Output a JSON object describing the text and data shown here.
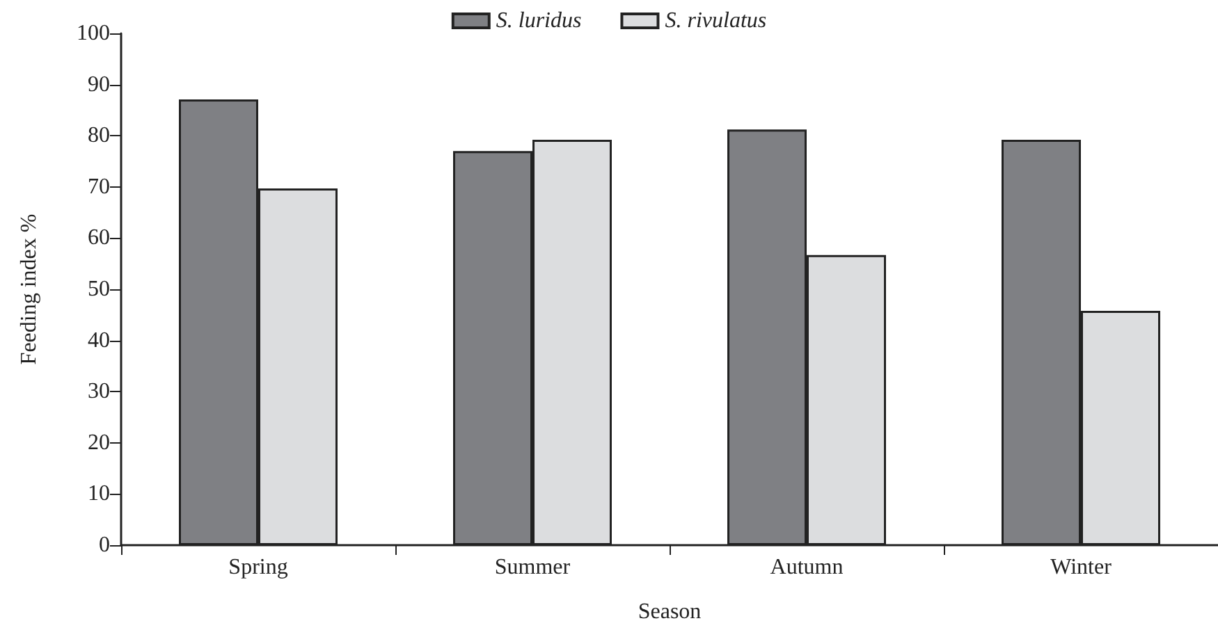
{
  "chart_data": {
    "type": "bar",
    "xlabel": "Season",
    "ylabel": "Feeding index %",
    "categories": [
      "Spring",
      "Summer",
      "Autumn",
      "Winter"
    ],
    "series": [
      {
        "name": "S. luridus",
        "color": "#7f8084",
        "values": [
          87.1,
          77.0,
          81.2,
          79.2
        ]
      },
      {
        "name": "S. rivulatus",
        "color": "#dcdddf",
        "values": [
          69.7,
          79.2,
          56.7,
          45.8
        ]
      }
    ],
    "ylim": [
      0,
      100
    ],
    "yticks": [
      0,
      10,
      20,
      30,
      40,
      50,
      60,
      70,
      80,
      90,
      100
    ],
    "grid": false,
    "legend": "top"
  }
}
